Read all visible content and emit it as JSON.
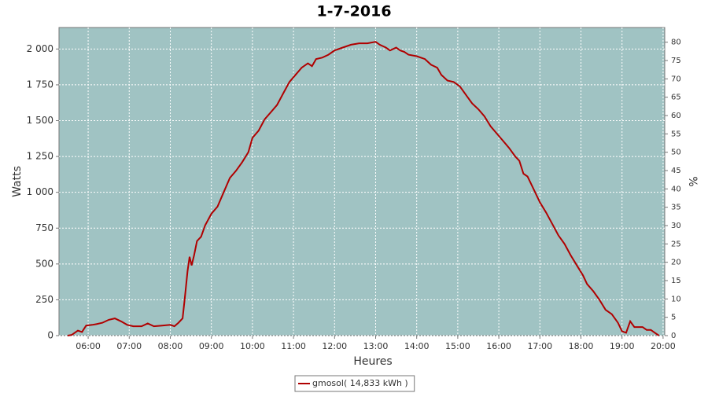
{
  "chart_data": {
    "type": "line",
    "title": "1-7-2016",
    "x_label": "Heures",
    "y_label": "Watts",
    "y2_label": "%",
    "xlim": [
      5.29,
      20.04
    ],
    "xticks": [
      {
        "value": 6,
        "label": "06:00"
      },
      {
        "value": 7,
        "label": "07:00"
      },
      {
        "value": 8,
        "label": "08:00"
      },
      {
        "value": 9,
        "label": "09:00"
      },
      {
        "value": 10,
        "label": "10:00"
      },
      {
        "value": 11,
        "label": "11:00"
      },
      {
        "value": 12,
        "label": "12:00"
      },
      {
        "value": 13,
        "label": "13:00"
      },
      {
        "value": 14,
        "label": "14:00"
      },
      {
        "value": 15,
        "label": "15:00"
      },
      {
        "value": 16,
        "label": "16:00"
      },
      {
        "value": 17,
        "label": "17:00"
      },
      {
        "value": 18,
        "label": "18:00"
      },
      {
        "value": 19,
        "label": "19:00"
      },
      {
        "value": 20,
        "label": "20:00"
      }
    ],
    "ylim": [
      0,
      2150
    ],
    "yticks": [
      0,
      250,
      500,
      750,
      {
        "value": 1000,
        "label": "1 000"
      },
      {
        "value": 1250,
        "label": "1 250"
      },
      {
        "value": 1500,
        "label": "1 500"
      },
      {
        "value": 1750,
        "label": "1 750"
      },
      {
        "value": 2000,
        "label": "2 000"
      }
    ],
    "y2lim": [
      0,
      84
    ],
    "y2ticks": [
      0,
      5,
      10,
      15,
      20,
      25,
      30,
      35,
      40,
      45,
      50,
      55,
      60,
      65,
      70,
      75,
      80
    ],
    "grid": true,
    "legend": "bottom",
    "x": [
      5.5,
      5.6,
      5.75,
      5.85,
      5.95,
      6.1,
      6.2,
      6.35,
      6.5,
      6.65,
      6.8,
      6.95,
      7.1,
      7.3,
      7.45,
      7.6,
      7.8,
      8.0,
      8.1,
      8.2,
      8.3,
      8.35,
      8.42,
      8.47,
      8.52,
      8.58,
      8.65,
      8.75,
      8.85,
      9.0,
      9.15,
      9.3,
      9.45,
      9.6,
      9.75,
      9.9,
      10.0,
      10.15,
      10.3,
      10.45,
      10.6,
      10.75,
      10.9,
      11.05,
      11.2,
      11.35,
      11.45,
      11.55,
      11.7,
      11.85,
      12.0,
      12.2,
      12.4,
      12.6,
      12.8,
      13.0,
      13.1,
      13.25,
      13.35,
      13.5,
      13.6,
      13.7,
      13.8,
      14.0,
      14.2,
      14.35,
      14.5,
      14.6,
      14.75,
      14.9,
      15.05,
      15.2,
      15.35,
      15.5,
      15.65,
      15.8,
      15.95,
      16.1,
      16.25,
      16.4,
      16.5,
      16.6,
      16.7,
      16.85,
      17.0,
      17.15,
      17.3,
      17.45,
      17.6,
      17.75,
      17.9,
      18.05,
      18.15,
      18.3,
      18.45,
      18.6,
      18.75,
      18.9,
      19.0,
      19.1,
      19.2,
      19.3,
      19.5,
      19.6,
      19.7,
      19.8,
      19.9
    ],
    "series": [
      {
        "name": "gmosol( 14,833 kWh )",
        "color": "#b00000",
        "values": [
          0,
          5,
          35,
          25,
          70,
          75,
          80,
          90,
          110,
          120,
          100,
          75,
          65,
          65,
          85,
          65,
          70,
          75,
          65,
          90,
          120,
          250,
          450,
          550,
          490,
          560,
          660,
          690,
          770,
          850,
          900,
          1000,
          1100,
          1150,
          1210,
          1280,
          1380,
          1430,
          1510,
          1560,
          1610,
          1690,
          1770,
          1820,
          1870,
          1900,
          1880,
          1930,
          1940,
          1960,
          1990,
          2010,
          2030,
          2040,
          2040,
          2050,
          2030,
          2010,
          1990,
          2010,
          1990,
          1980,
          1960,
          1950,
          1930,
          1890,
          1870,
          1820,
          1780,
          1770,
          1740,
          1680,
          1620,
          1580,
          1530,
          1460,
          1410,
          1360,
          1310,
          1250,
          1220,
          1130,
          1110,
          1020,
          930,
          860,
          780,
          700,
          640,
          560,
          490,
          420,
          360,
          310,
          250,
          180,
          150,
          90,
          30,
          20,
          100,
          60,
          60,
          40,
          40,
          20,
          0
        ]
      }
    ]
  }
}
